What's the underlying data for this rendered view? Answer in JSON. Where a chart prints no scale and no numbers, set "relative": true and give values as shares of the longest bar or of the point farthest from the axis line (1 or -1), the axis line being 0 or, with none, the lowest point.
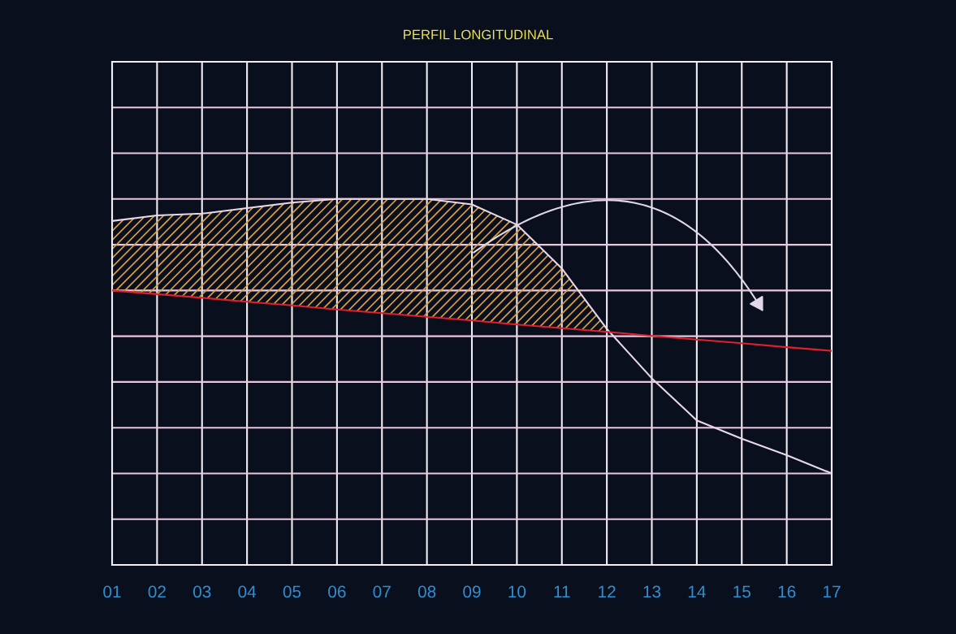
{
  "chart_data": {
    "type": "line",
    "title": "PERFIL LONGITUDINAL",
    "relative": true,
    "grid": true,
    "marker": "none",
    "line_style": "solid",
    "categories": [
      "01",
      "02",
      "03",
      "04",
      "05",
      "06",
      "07",
      "08",
      "09",
      "10",
      "11",
      "12",
      "13",
      "14",
      "15",
      "16",
      "17"
    ],
    "series": [
      {
        "color": "#e8d8e8",
        "values": [
          0.94,
          0.955,
          0.96,
          0.975,
          0.99,
          1,
          1,
          1,
          0.985,
          0.93,
          0.81,
          0.645,
          0.51,
          0.395,
          0.345,
          0.3,
          0.25
        ],
        "upper": [
          0.94,
          0.955,
          0.96,
          0.975,
          0.99,
          1,
          1,
          1,
          0.985,
          0.93,
          0.81,
          0.645,
          null,
          null,
          null,
          null,
          null
        ],
        "lower": [
          0.75,
          0.74,
          0.73,
          0.719,
          0.709,
          0.698,
          0.688,
          0.678,
          0.668,
          0.657,
          0.647,
          0.637,
          null,
          null,
          null,
          null,
          null
        ]
      },
      {
        "color": "#e0202a",
        "values": [
          0.75,
          0.74,
          0.73,
          0.719,
          0.709,
          0.698,
          0.688,
          0.678,
          0.668,
          0.657,
          0.647,
          0.637,
          0.626,
          0.616,
          0.606,
          0.595,
          0.585
        ]
      }
    ]
  }
}
